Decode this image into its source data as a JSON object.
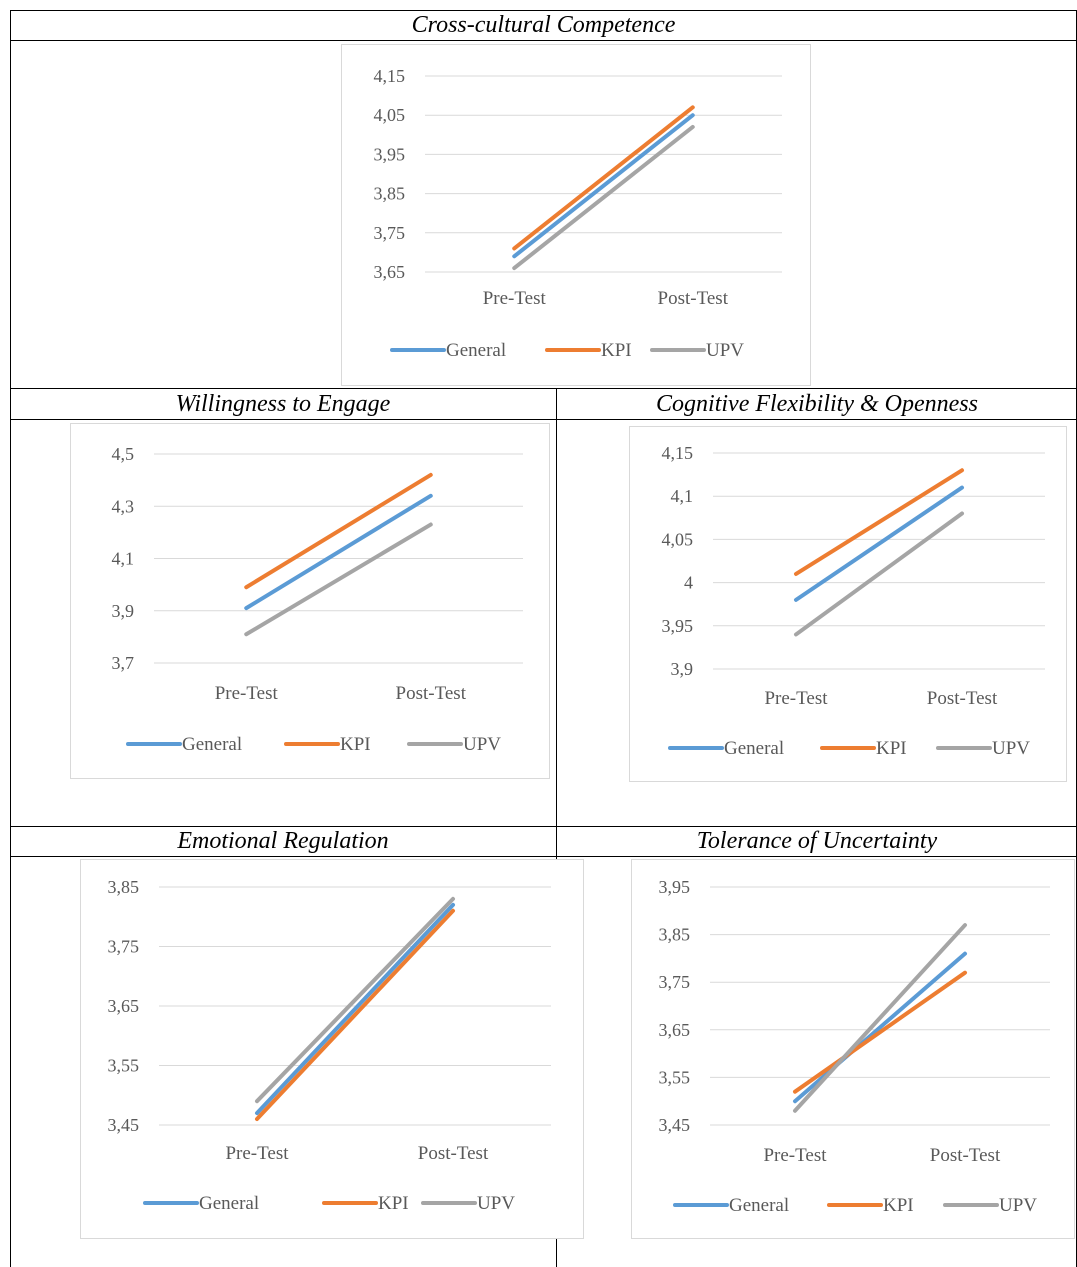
{
  "colors": {
    "General": "#5b9bd5",
    "KPI": "#ed7d31",
    "UPV": "#a5a5a5",
    "grid": "#d9d9d9"
  },
  "chart_data": [
    {
      "id": "c1",
      "type": "line",
      "title": "Cross-cultural Competence",
      "categories": [
        "Pre-Test",
        "Post-Test"
      ],
      "yticks": [
        "3,65",
        "3,75",
        "3,85",
        "3,95",
        "4,05",
        "4,15"
      ],
      "ylim": [
        3.65,
        4.15
      ],
      "series": [
        {
          "name": "General",
          "values": [
            3.69,
            4.05
          ]
        },
        {
          "name": "KPI",
          "values": [
            3.71,
            4.07
          ]
        },
        {
          "name": "UPV",
          "values": [
            3.66,
            4.02
          ]
        }
      ],
      "grid": true,
      "legend": "bottom"
    },
    {
      "id": "c2",
      "type": "line",
      "title": "Willingness to Engage",
      "categories": [
        "Pre-Test",
        "Post-Test"
      ],
      "yticks": [
        "3,7",
        "3,9",
        "4,1",
        "4,3",
        "4,5"
      ],
      "ylim": [
        3.7,
        4.5
      ],
      "series": [
        {
          "name": "General",
          "values": [
            3.91,
            4.34
          ]
        },
        {
          "name": "KPI",
          "values": [
            3.99,
            4.42
          ]
        },
        {
          "name": "UPV",
          "values": [
            3.81,
            4.23
          ]
        }
      ],
      "grid": true,
      "legend": "bottom"
    },
    {
      "id": "c3",
      "type": "line",
      "title": "Cognitive Flexibility & Openness",
      "categories": [
        "Pre-Test",
        "Post-Test"
      ],
      "yticks": [
        "3,9",
        "3,95",
        "4",
        "4,05",
        "4,1",
        "4,15"
      ],
      "ylim": [
        3.9,
        4.15
      ],
      "series": [
        {
          "name": "General",
          "values": [
            3.98,
            4.11
          ]
        },
        {
          "name": "KPI",
          "values": [
            4.01,
            4.13
          ]
        },
        {
          "name": "UPV",
          "values": [
            3.94,
            4.08
          ]
        }
      ],
      "grid": true,
      "legend": "bottom"
    },
    {
      "id": "c4",
      "type": "line",
      "title": "Emotional Regulation",
      "categories": [
        "Pre-Test",
        "Post-Test"
      ],
      "yticks": [
        "3,45",
        "3,55",
        "3,65",
        "3,75",
        "3,85"
      ],
      "ylim": [
        3.45,
        3.85
      ],
      "series": [
        {
          "name": "General",
          "values": [
            3.47,
            3.82
          ]
        },
        {
          "name": "KPI",
          "values": [
            3.46,
            3.81
          ]
        },
        {
          "name": "UPV",
          "values": [
            3.49,
            3.83
          ]
        }
      ],
      "grid": true,
      "legend": "bottom"
    },
    {
      "id": "c5",
      "type": "line",
      "title": "Tolerance of Uncertainty",
      "categories": [
        "Pre-Test",
        "Post-Test"
      ],
      "yticks": [
        "3,45",
        "3,55",
        "3,65",
        "3,75",
        "3,85",
        "3,95"
      ],
      "ylim": [
        3.45,
        3.95
      ],
      "series": [
        {
          "name": "General",
          "values": [
            3.5,
            3.81
          ]
        },
        {
          "name": "KPI",
          "values": [
            3.52,
            3.77
          ]
        },
        {
          "name": "UPV",
          "values": [
            3.48,
            3.87
          ]
        }
      ],
      "grid": true,
      "legend": "bottom"
    }
  ]
}
